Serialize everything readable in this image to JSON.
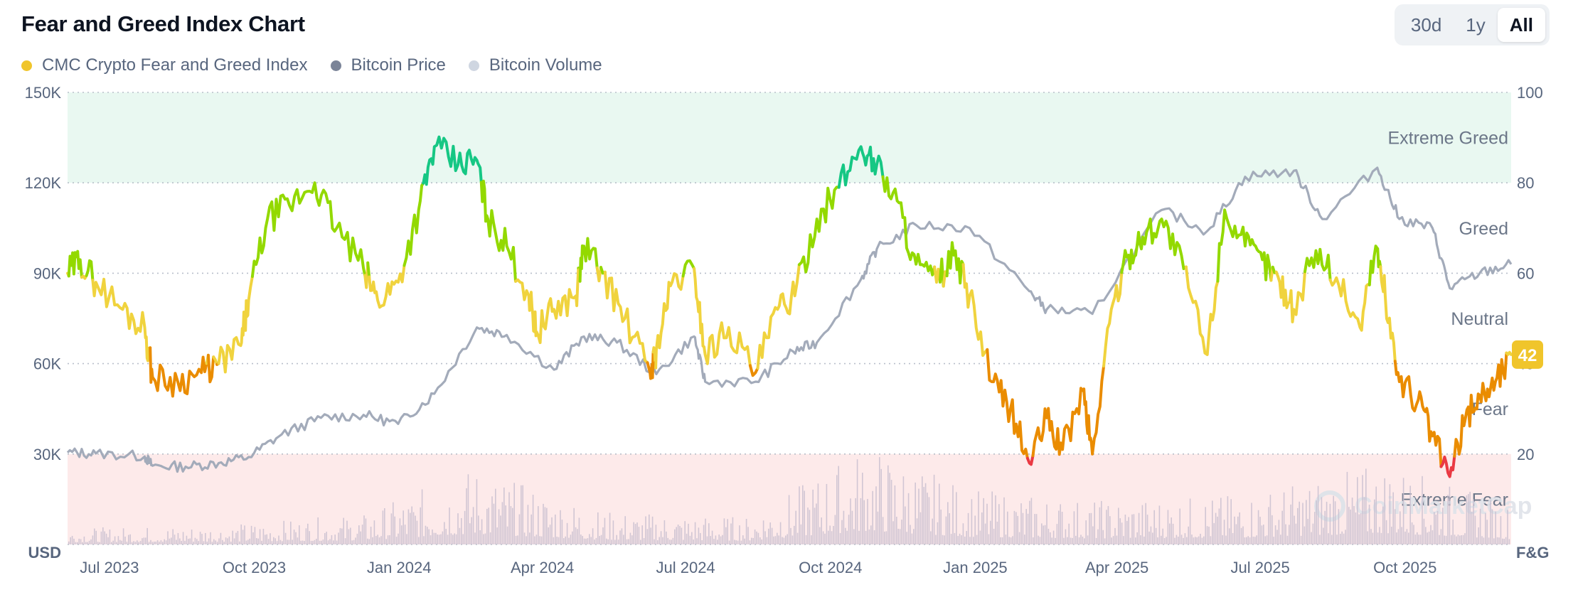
{
  "header": {
    "title": "Fear and Greed Index Chart"
  },
  "range_buttons": [
    {
      "label": "30d",
      "active": false
    },
    {
      "label": "1y",
      "active": false
    },
    {
      "label": "All",
      "active": true
    }
  ],
  "legend": [
    {
      "label": "CMC Crypto Fear and Greed Index",
      "color": "#f0c52b"
    },
    {
      "label": "Bitcoin Price",
      "color": "#7b8498"
    },
    {
      "label": "Bitcoin Volume",
      "color": "#cfd6e1"
    }
  ],
  "watermark": "CoinMarketCap",
  "chart_data": {
    "type": "line",
    "x_range": [
      "2023-06-27",
      "2025-12-30"
    ],
    "x_ticks": [
      "Jul 2023",
      "Oct 2023",
      "Jan 2024",
      "Apr 2024",
      "Jul 2024",
      "Oct 2024",
      "Jan 2025",
      "Apr 2025",
      "Jul 2025",
      "Oct 2025"
    ],
    "left_axis": {
      "label": "USD",
      "ylim": [
        0,
        150000
      ],
      "ticks": [
        "30K",
        "60K",
        "90K",
        "120K",
        "150K"
      ]
    },
    "right_axis": {
      "label": "F&G",
      "ylim": [
        0,
        100
      ],
      "ticks": [
        "20",
        "40",
        "60",
        "80",
        "100"
      ]
    },
    "grid": true,
    "zones": [
      {
        "name": "Extreme Greed",
        "from": 80,
        "to": 100,
        "color": "#e9f8f1"
      },
      {
        "name": "Greed",
        "from": 60,
        "to": 80,
        "color": "#ffffff"
      },
      {
        "name": "Neutral",
        "from": 40,
        "to": 60,
        "color": "#ffffff"
      },
      {
        "name": "Fear",
        "from": 20,
        "to": 40,
        "color": "#ffffff"
      },
      {
        "name": "Extreme Fear",
        "from": 0,
        "to": 20,
        "color": "#fdeaea"
      }
    ],
    "zone_colors": {
      "extreme_fear": "#ea3943",
      "fear": "#ea8c00",
      "neutral": "#f0d33e",
      "greed": "#93d900",
      "extreme_greed": "#16c784"
    },
    "current_value": "42",
    "series": [
      {
        "name": "CMC Crypto Fear and Greed Index",
        "axis": "right",
        "x": [
          "2023-06-27",
          "2023-07-05",
          "2023-07-15",
          "2023-08-01",
          "2023-08-15",
          "2023-08-20",
          "2023-09-05",
          "2023-09-20",
          "2023-10-01",
          "2023-10-15",
          "2023-10-20",
          "2023-11-01",
          "2023-11-15",
          "2023-12-01",
          "2023-12-15",
          "2024-01-01",
          "2024-01-10",
          "2024-01-23",
          "2024-02-05",
          "2024-02-15",
          "2024-03-01",
          "2024-03-13",
          "2024-03-20",
          "2024-04-01",
          "2024-04-15",
          "2024-04-20",
          "2024-05-01",
          "2024-05-15",
          "2024-05-20",
          "2024-06-01",
          "2024-06-15",
          "2024-07-01",
          "2024-07-05",
          "2024-07-15",
          "2024-07-29",
          "2024-08-05",
          "2024-08-20",
          "2024-09-06",
          "2024-09-20",
          "2024-10-01",
          "2024-10-15",
          "2024-10-29",
          "2024-11-12",
          "2024-11-22",
          "2024-12-05",
          "2024-12-17",
          "2024-12-30",
          "2025-01-10",
          "2025-01-20",
          "2025-02-03",
          "2025-02-15",
          "2025-02-27",
          "2025-03-10",
          "2025-03-20",
          "2025-04-02",
          "2025-04-08",
          "2025-04-20",
          "2025-05-01",
          "2025-05-10",
          "2025-05-22",
          "2025-06-05",
          "2025-06-20",
          "2025-07-01",
          "2025-07-14",
          "2025-07-25",
          "2025-08-05",
          "2025-08-14",
          "2025-08-28",
          "2025-09-10",
          "2025-09-25",
          "2025-10-05",
          "2025-10-11",
          "2025-10-20",
          "2025-11-01",
          "2025-11-10",
          "2025-11-21",
          "2025-12-01",
          "2025-12-10",
          "2025-12-20",
          "2025-12-30"
        ],
        "values": [
          60,
          63,
          58,
          52,
          48,
          37,
          36,
          38,
          40,
          44,
          54,
          72,
          75,
          80,
          70,
          61,
          54,
          58,
          74,
          88,
          84,
          85,
          72,
          66,
          55,
          47,
          52,
          55,
          66,
          60,
          50,
          38,
          43,
          58,
          61,
          42,
          48,
          38,
          52,
          55,
          72,
          79,
          88,
          84,
          76,
          62,
          58,
          64,
          55,
          36,
          30,
          18,
          28,
          21,
          34,
          20,
          52,
          64,
          68,
          72,
          61,
          42,
          74,
          66,
          63,
          58,
          52,
          65,
          59,
          48,
          66,
          55,
          36,
          32,
          24,
          15,
          28,
          33,
          36,
          42
        ]
      },
      {
        "name": "Bitcoin Price",
        "axis": "left",
        "x": [
          "2023-06-27",
          "2023-07-15",
          "2023-08-15",
          "2023-08-20",
          "2023-09-10",
          "2023-10-01",
          "2023-10-20",
          "2023-11-10",
          "2023-12-05",
          "2024-01-01",
          "2024-01-23",
          "2024-02-15",
          "2024-03-13",
          "2024-04-01",
          "2024-05-01",
          "2024-05-20",
          "2024-06-10",
          "2024-07-05",
          "2024-07-29",
          "2024-08-05",
          "2024-09-06",
          "2024-09-30",
          "2024-10-15",
          "2024-11-12",
          "2024-11-22",
          "2024-12-17",
          "2025-01-20",
          "2025-02-27",
          "2025-03-10",
          "2025-04-08",
          "2025-05-22",
          "2025-06-20",
          "2025-07-14",
          "2025-08-14",
          "2025-09-01",
          "2025-10-06",
          "2025-10-20",
          "2025-11-10",
          "2025-11-21",
          "2025-12-10",
          "2025-12-30"
        ],
        "values": [
          30500,
          30200,
          29200,
          26100,
          25800,
          27000,
          29000,
          36500,
          42000,
          43000,
          40000,
          50000,
          72000,
          69500,
          58000,
          69000,
          67000,
          56500,
          69000,
          54000,
          54000,
          64000,
          67000,
          88000,
          98000,
          106000,
          105000,
          84000,
          78000,
          76500,
          111000,
          104000,
          122000,
          124000,
          108000,
          125000,
          108000,
          105000,
          85000,
          90000,
          93000
        ]
      },
      {
        "name": "Bitcoin Volume",
        "axis": "left",
        "x": [
          "2023-07-01",
          "2023-10-01",
          "2024-01-01",
          "2024-03-10",
          "2024-06-01",
          "2024-09-01",
          "2024-11-15",
          "2025-01-20",
          "2025-04-08",
          "2025-07-14",
          "2025-10-11",
          "2025-12-30"
        ],
        "values": [
          3000,
          3500,
          5500,
          14000,
          6000,
          5000,
          18000,
          10000,
          8000,
          9000,
          15000,
          7000
        ]
      }
    ]
  }
}
